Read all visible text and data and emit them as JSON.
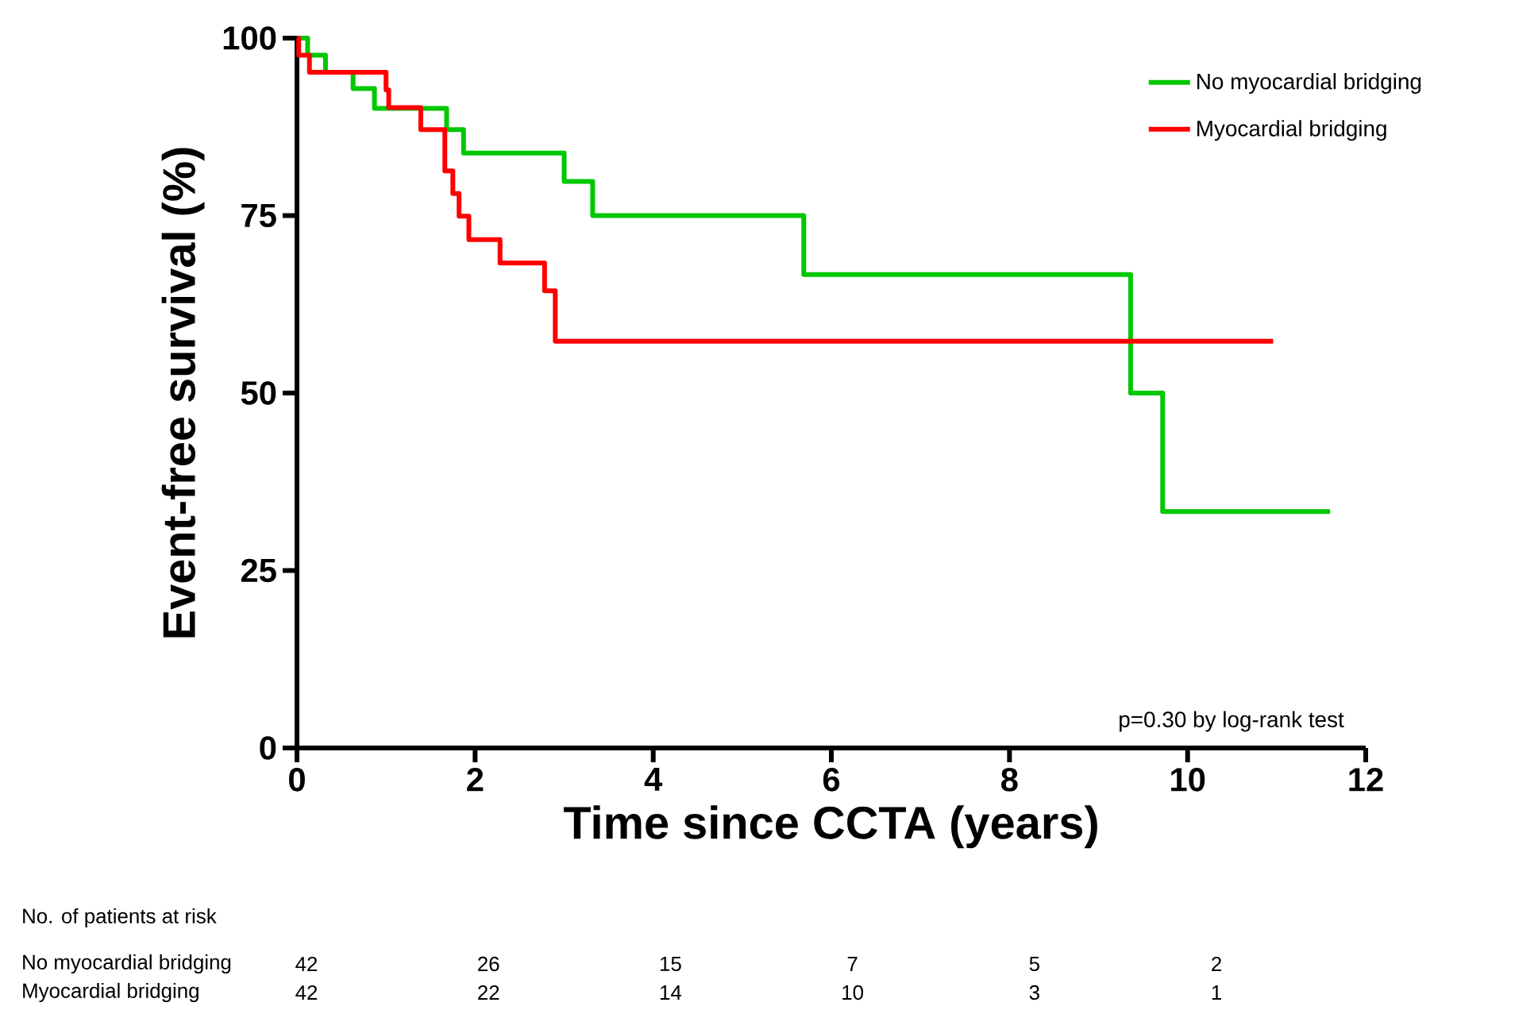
{
  "chart_data": {
    "type": "step",
    "xlabel": "Time since CCTA (years)",
    "ylabel": "Event-free survival (%)",
    "xlim": [
      0,
      12
    ],
    "xticks": [
      0,
      2,
      4,
      6,
      8,
      10,
      12
    ],
    "ylim": [
      0,
      100
    ],
    "yticks": [
      0,
      25,
      50,
      75,
      100
    ],
    "legend": "top right",
    "series": [
      {
        "name": "No myocardial bridging",
        "color": "#00c800",
        "x": [
          0,
          0.12,
          0.32,
          0.63,
          0.87,
          1.68,
          1.87,
          3.0,
          3.32,
          5.69,
          9.36,
          9.72,
          11.6
        ],
        "values": [
          100,
          97.6,
          95.2,
          92.9,
          90.1,
          87.1,
          83.8,
          79.8,
          75,
          66.7,
          50,
          33.3,
          33.3
        ]
      },
      {
        "name": "Myocardial bridging",
        "color": "#ff0000",
        "x": [
          0,
          0.02,
          0.14,
          1.0,
          1.03,
          1.39,
          1.66,
          1.75,
          1.82,
          1.93,
          2.28,
          2.78,
          2.9,
          10.96
        ],
        "values": [
          100,
          97.6,
          95.2,
          92.7,
          90.2,
          87.1,
          81.3,
          78.1,
          74.9,
          71.6,
          68.3,
          64.4,
          57.3,
          57.3
        ]
      }
    ],
    "annotations": [
      "p=0.30 by log-rank test",
      "No. of patients at risk",
      "No myocardial bridging",
      "Myocardial bridging",
      "42",
      "26",
      "15",
      "7",
      "5",
      "2",
      "42",
      "22",
      "14",
      "10",
      "3",
      "1"
    ]
  }
}
